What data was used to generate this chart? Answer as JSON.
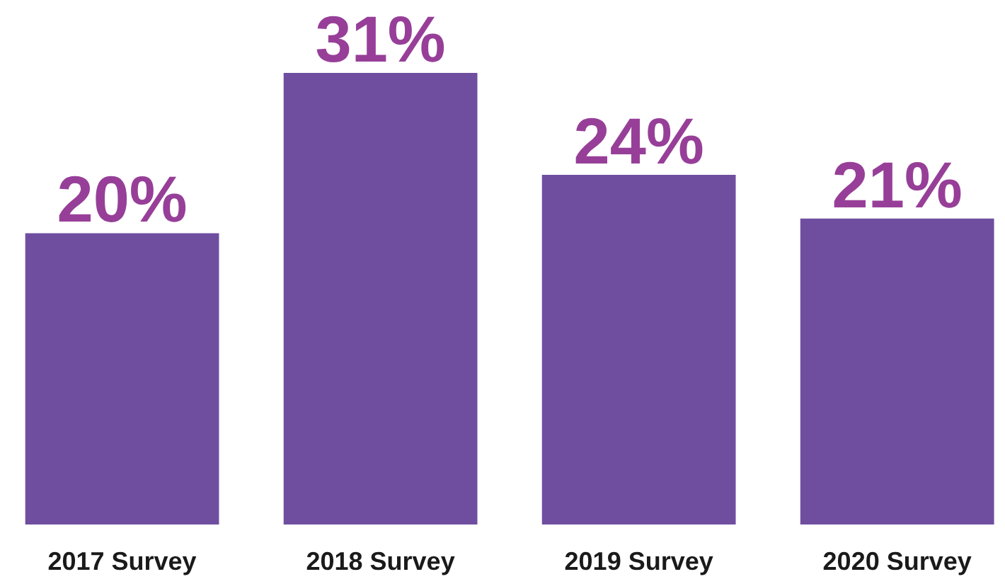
{
  "chart_data": {
    "type": "bar",
    "categories": [
      "2017 Survey",
      "2018 Survey",
      "2019 Survey",
      "2020 Survey"
    ],
    "values": [
      20,
      31,
      24,
      21
    ],
    "color": "#6f4ea0",
    "value_labels": [
      "20%",
      "31%",
      "24%",
      "21%"
    ]
  }
}
